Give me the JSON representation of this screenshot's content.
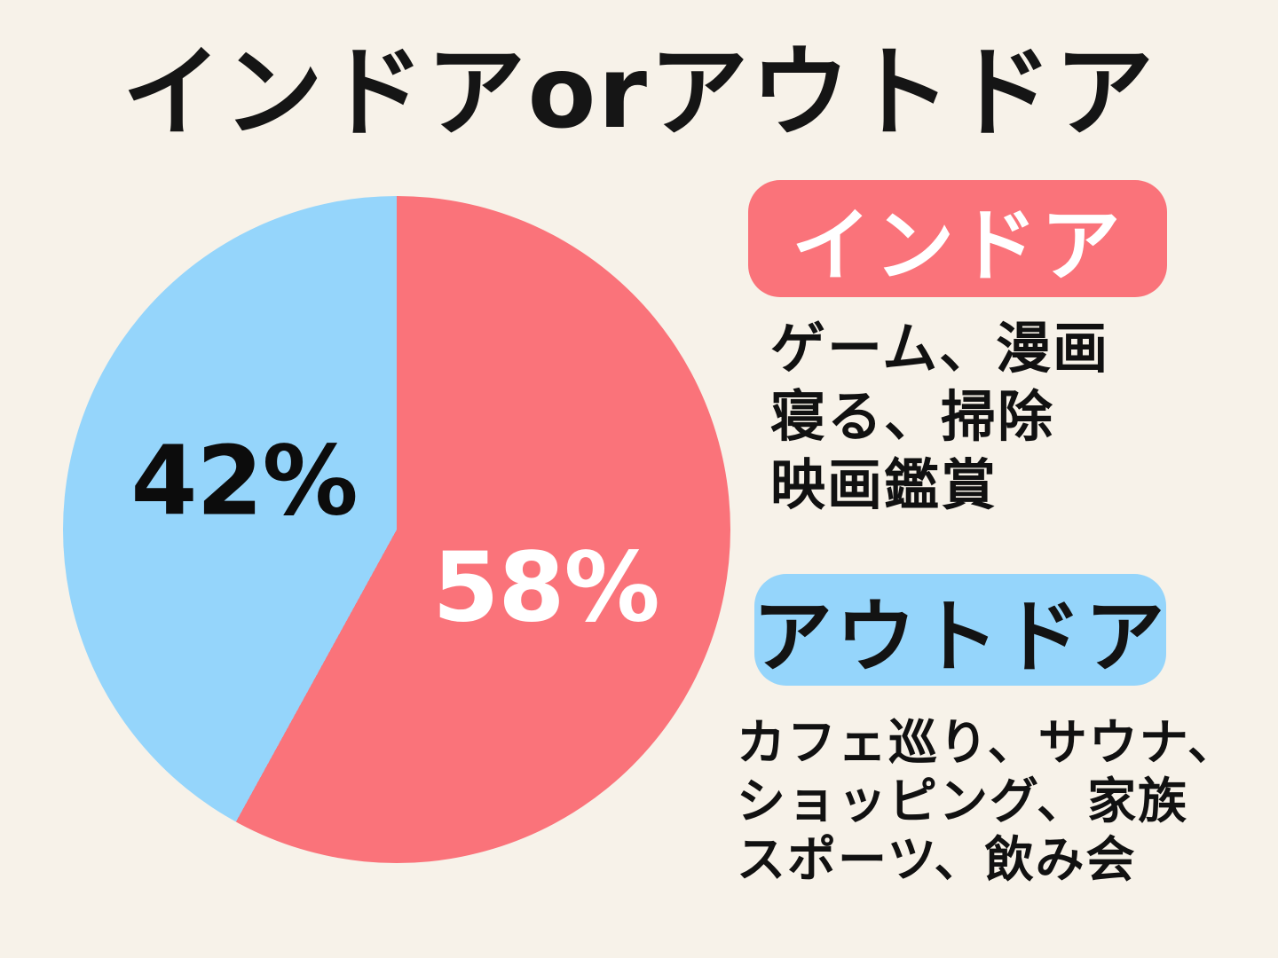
{
  "page": {
    "background_color": "#f7f2e9",
    "title": "インドアorアウトドア",
    "title_color": "#151515"
  },
  "chart_data": {
    "type": "pie",
    "title": "インドアorアウトドア",
    "categories": [
      "インドア",
      "アウトドア"
    ],
    "values": [
      58,
      42
    ],
    "unit": "%",
    "colors": [
      "#fa737a",
      "#95d5fb"
    ],
    "slice_labels": [
      "58%",
      "42%"
    ],
    "slice_label_colors": [
      "#ffffff",
      "#0c0c0c"
    ],
    "start_angle_deg": 0,
    "direction": "clockwise",
    "legend_position": "right"
  },
  "legend": {
    "indoor": {
      "label": "インドア",
      "badge_color": "#fa737a",
      "label_color": "#ffffff",
      "items_lines": [
        "ゲーム、漫画",
        "寝る、掃除",
        "映画鑑賞"
      ]
    },
    "outdoor": {
      "label": "アウトドア",
      "badge_color": "#95d5fb",
      "label_color": "#131313",
      "items_lines": [
        "カフェ巡り、サウナ、",
        "ショッピング、家族",
        "スポーツ、飲み会"
      ]
    }
  }
}
